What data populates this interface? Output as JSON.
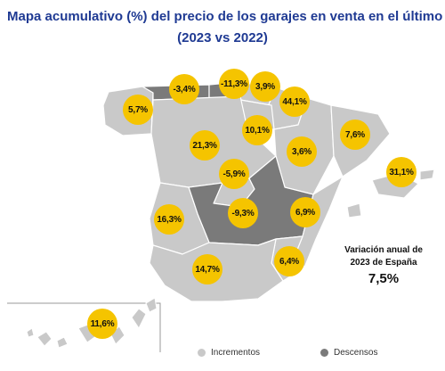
{
  "title_line1": "Mapa acumulativo (%) del precio de los garajes en venta en el último año",
  "title_line2": "(2023 vs 2022)",
  "colors": {
    "increase": "#c9c9c9",
    "decrease": "#7a7a7a",
    "bubble": "#f5c400",
    "title": "#1f3a93"
  },
  "regions": [
    {
      "name": "Galicia",
      "value": "5,7%",
      "trend": "increase"
    },
    {
      "name": "Asturias",
      "value": "-3,4%",
      "trend": "decrease"
    },
    {
      "name": "Cantabria",
      "value": "-11,3%",
      "trend": "decrease"
    },
    {
      "name": "País Vasco",
      "value": "3,9%",
      "trend": "increase"
    },
    {
      "name": "Navarra",
      "value": "44,1%",
      "trend": "increase"
    },
    {
      "name": "La Rioja",
      "value": "10,1%",
      "trend": "increase"
    },
    {
      "name": "Aragón",
      "value": "3,6%",
      "trend": "increase"
    },
    {
      "name": "Cataluña",
      "value": "7,6%",
      "trend": "increase"
    },
    {
      "name": "Castilla y León",
      "value": "21,3%",
      "trend": "increase"
    },
    {
      "name": "Madrid",
      "value": "-5,9%",
      "trend": "decrease"
    },
    {
      "name": "Baleares",
      "value": "31,1%",
      "trend": "increase"
    },
    {
      "name": "Castilla-La Mancha",
      "value": "-9,3%",
      "trend": "decrease"
    },
    {
      "name": "Comunidad Valenciana",
      "value": "6,9%",
      "trend": "increase"
    },
    {
      "name": "Extremadura",
      "value": "16,3%",
      "trend": "increase"
    },
    {
      "name": "Murcia",
      "value": "6,4%",
      "trend": "increase"
    },
    {
      "name": "Andalucía",
      "value": "14,7%",
      "trend": "increase"
    },
    {
      "name": "Canarias",
      "value": "11,6%",
      "trend": "increase"
    }
  ],
  "national": {
    "label_line1": "Variación anual de",
    "label_line2": "2023 de España",
    "value": "7,5%"
  },
  "legend": {
    "increase": "Incrementos",
    "decrease": "Descensos"
  }
}
